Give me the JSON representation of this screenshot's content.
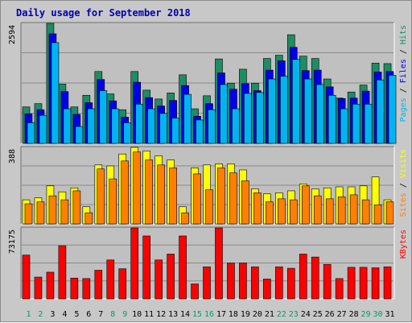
{
  "title": "Daily usage for September 2018",
  "chart_data": [
    {
      "type": "bar",
      "name": "hits-files-pages",
      "categories": [
        "1",
        "2",
        "3",
        "4",
        "5",
        "6",
        "7",
        "8",
        "9",
        "10",
        "11",
        "12",
        "13",
        "14",
        "15",
        "16",
        "17",
        "18",
        "19",
        "20",
        "21",
        "22",
        "23",
        "24",
        "25",
        "26",
        "27",
        "28",
        "29",
        "30",
        "31"
      ],
      "ylabel_parts": [
        {
          "text": "Pages",
          "color": "#00b4f0"
        },
        {
          "text": " / ",
          "color": "#000000"
        },
        {
          "text": "Files",
          "color": "#0000e6"
        },
        {
          "text": " / ",
          "color": "#000000"
        },
        {
          "text": "Hits",
          "color": "#1e8c64"
        }
      ],
      "ymax_label": "2594",
      "ylim": [
        0,
        2594
      ],
      "series": [
        {
          "name": "Hits",
          "color": "#1e8c64",
          "values": [
            800,
            870,
            2594,
            1290,
            800,
            1050,
            1560,
            1080,
            740,
            1560,
            1160,
            970,
            1100,
            1490,
            760,
            1040,
            1830,
            1310,
            1610,
            1310,
            1840,
            1910,
            2350,
            1890,
            1840,
            1400,
            990,
            1120,
            1270,
            1740,
            1730
          ]
        },
        {
          "name": "Files",
          "color": "#0000e6",
          "values": [
            650,
            740,
            2370,
            1130,
            640,
            890,
            1390,
            930,
            580,
            1330,
            1000,
            820,
            940,
            1260,
            600,
            870,
            1530,
            1180,
            1300,
            1150,
            1590,
            1790,
            2080,
            1580,
            1590,
            1230,
            980,
            990,
            1140,
            1550,
            1560
          ]
        },
        {
          "name": "Pages",
          "color": "#00b4f0",
          "values": [
            460,
            620,
            2180,
            760,
            380,
            760,
            1150,
            760,
            460,
            860,
            760,
            660,
            560,
            1070,
            520,
            740,
            1280,
            760,
            1090,
            1110,
            1400,
            1460,
            1820,
            1400,
            1280,
            1050,
            760,
            860,
            860,
            1380,
            1480
          ]
        }
      ],
      "weekend_days": [
        "1",
        "2",
        "8",
        "9",
        "15",
        "16",
        "22",
        "23",
        "29",
        "30"
      ]
    },
    {
      "type": "bar",
      "name": "visits-sites",
      "categories": [
        "1",
        "2",
        "3",
        "4",
        "5",
        "6",
        "7",
        "8",
        "9",
        "10",
        "11",
        "12",
        "13",
        "14",
        "15",
        "16",
        "17",
        "18",
        "19",
        "20",
        "21",
        "22",
        "23",
        "24",
        "25",
        "26",
        "27",
        "28",
        "29",
        "30",
        "31"
      ],
      "ylabel_parts": [
        {
          "text": "Sites",
          "color": "#ff8000"
        },
        {
          "text": " / ",
          "color": "#000000"
        },
        {
          "text": "Visits",
          "color": "#ffff00"
        }
      ],
      "ymax_label": "388",
      "ylim": [
        0,
        388
      ],
      "series": [
        {
          "name": "Visits",
          "color": "#ffff00",
          "values": [
            125,
            135,
            195,
            165,
            185,
            90,
            300,
            295,
            355,
            388,
            370,
            345,
            325,
            90,
            285,
            300,
            305,
            305,
            275,
            180,
            155,
            160,
            170,
            205,
            180,
            185,
            190,
            190,
            195,
            240,
            125
          ]
        },
        {
          "name": "Sites",
          "color": "#ff8000",
          "values": [
            105,
            115,
            145,
            125,
            170,
            60,
            280,
            230,
            320,
            365,
            325,
            300,
            285,
            60,
            255,
            175,
            285,
            260,
            220,
            160,
            115,
            130,
            125,
            195,
            145,
            130,
            140,
            150,
            125,
            100,
            115
          ]
        }
      ]
    },
    {
      "type": "bar",
      "name": "kbytes",
      "categories": [
        "1",
        "2",
        "3",
        "4",
        "5",
        "6",
        "7",
        "8",
        "9",
        "10",
        "11",
        "12",
        "13",
        "14",
        "15",
        "16",
        "17",
        "18",
        "19",
        "20",
        "21",
        "22",
        "23",
        "24",
        "25",
        "26",
        "27",
        "28",
        "29",
        "30",
        "31"
      ],
      "ylabel_parts": [
        {
          "text": "KBytes",
          "color": "#ff0000"
        }
      ],
      "ymax_label": "73175",
      "ylim": [
        0,
        73175
      ],
      "series": [
        {
          "name": "KBytes",
          "color": "#ff0000",
          "values": [
            45500,
            23000,
            28000,
            55000,
            22000,
            21500,
            30000,
            40500,
            31500,
            73175,
            65000,
            40500,
            46500,
            65000,
            16000,
            33500,
            73175,
            37500,
            37500,
            33500,
            21000,
            33500,
            32000,
            46500,
            43500,
            36000,
            21500,
            33000,
            33000,
            32500,
            33500
          ]
        }
      ]
    }
  ]
}
